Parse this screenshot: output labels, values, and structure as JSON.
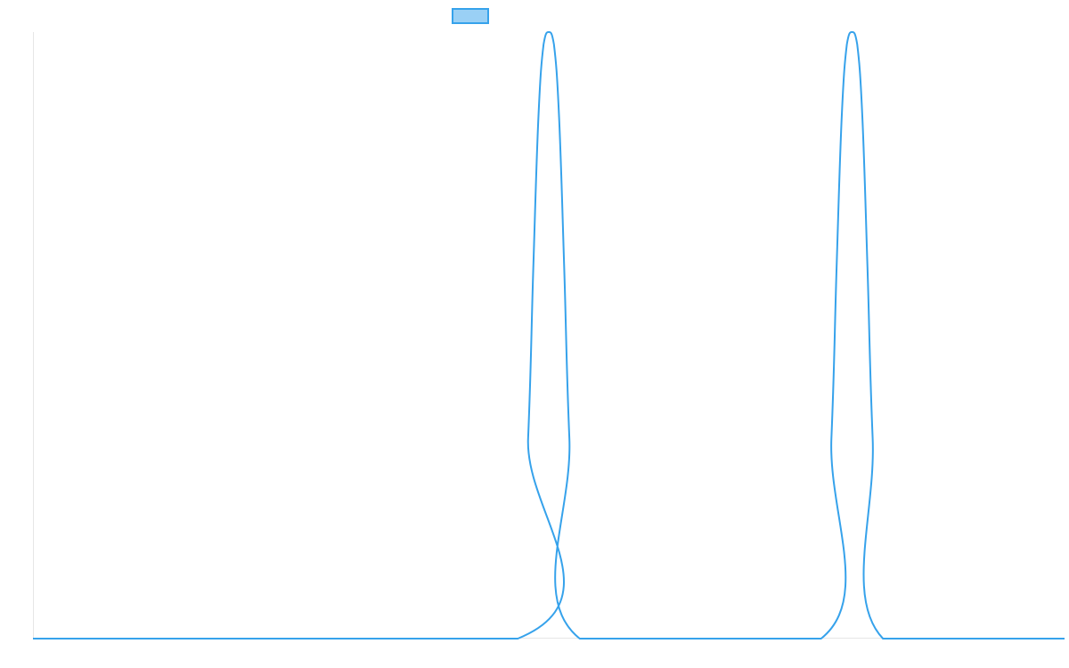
{
  "chart_data": {
    "type": "line",
    "title": "",
    "xlabel": "",
    "ylabel": "",
    "legend_placement": "top-center",
    "grid": false,
    "xlim": [
      0,
      100
    ],
    "ylim": [
      0,
      1
    ],
    "colors": {
      "line": "#36a2eb",
      "legend_fill": "#9ad0f5",
      "axis": "#e6e6e6"
    },
    "series": [
      {
        "legend_label": "",
        "x": [
          0,
          47.0,
          48.0,
          48.5,
          49.0,
          49.5,
          50.0,
          50.5,
          51.0,
          51.5,
          52.0,
          53.0,
          76.4,
          77.4,
          77.9,
          78.4,
          78.9,
          79.4,
          79.9,
          80.4,
          80.9,
          81.4,
          82.4,
          100
        ],
        "y": [
          0,
          0,
          0.33,
          0.61,
          0.86,
          0.98,
          1.0,
          0.98,
          0.86,
          0.61,
          0.33,
          0,
          0,
          0.33,
          0.61,
          0.86,
          0.98,
          1.0,
          0.98,
          0.86,
          0.61,
          0.33,
          0,
          0
        ]
      }
    ]
  }
}
